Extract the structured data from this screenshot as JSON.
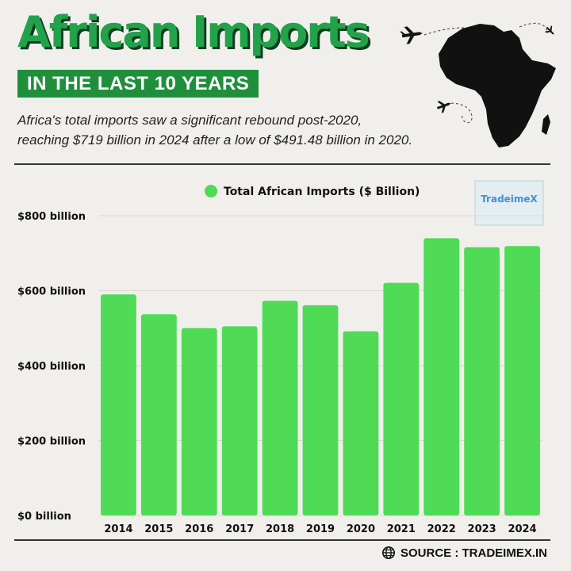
{
  "header": {
    "title": "African Imports",
    "banner": "IN THE LAST 10 YEARS",
    "description_line1": "Africa's total imports saw a significant rebound post-2020,",
    "description_line2": "reaching $719 billion in 2024 after a low of $491.48 billion in 2020."
  },
  "watermark": {
    "text": "TradeimeX"
  },
  "footer": {
    "source": "SOURCE : TRADEIMEX.IN",
    "icon": "globe-icon"
  },
  "colors": {
    "bar": "#4fdb55",
    "title": "#22a24a",
    "banner": "#1f8f3c",
    "background": "#f1efec",
    "map": "#111111"
  },
  "chart_data": {
    "type": "bar",
    "categories": [
      "2014",
      "2015",
      "2016",
      "2017",
      "2018",
      "2019",
      "2020",
      "2021",
      "2022",
      "2023",
      "2024"
    ],
    "series": [
      {
        "name": "Total African Imports ($ Billion)",
        "values": [
          590,
          537,
          500,
          505,
          573,
          561,
          491.48,
          621,
          740,
          716,
          719
        ]
      }
    ],
    "ylim": [
      0,
      800
    ],
    "yticks": [
      0,
      200,
      400,
      600,
      800
    ],
    "ytick_labels": [
      "$0 billion",
      "$200 billion",
      "$400 billion",
      "$600 billion",
      "$800 billion"
    ],
    "grid": true,
    "legend": "top-center"
  }
}
